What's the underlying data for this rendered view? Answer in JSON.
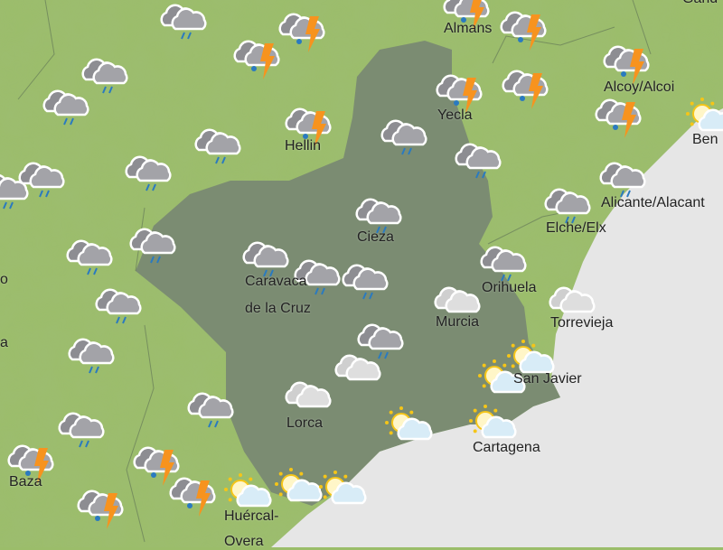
{
  "map": {
    "colors": {
      "land": "#9bbd6a",
      "region": "#7b8c72",
      "sea": "#e6e6e6",
      "sun": "#f5c518",
      "bolt": "#f7931e",
      "rain": "#2a7ac0"
    },
    "places": [
      "Gand",
      "Almans",
      "Yecla",
      "Alcoy/Alcoi",
      "Ben",
      "Hellin",
      "Alicante/Alacant",
      "Elche/Elx",
      "Cieza",
      "Caravaca",
      "de la Cruz",
      "Orihuela",
      "Murcia",
      "Torrevieja",
      "San Javier",
      "Lorca",
      "Cartagena",
      "Baza",
      "Huércal-",
      "Overa",
      "o",
      "a"
    ],
    "icons": [
      "rain",
      "rain",
      "rain",
      "rain",
      "rain",
      "rain",
      "rain",
      "rain",
      "rain",
      "rain",
      "rain",
      "rain",
      "rain",
      "rain",
      "rain",
      "rain",
      "rain",
      "rain",
      "rain",
      "rain",
      "rain",
      "rain",
      "rain",
      "storm",
      "storm",
      "storm",
      "storm",
      "storm",
      "storm",
      "storm",
      "storm",
      "storm",
      "storm",
      "storm",
      "storm",
      "storm",
      "cloud",
      "cloud",
      "cloud",
      "cloud",
      "sun-cloud",
      "sun-cloud",
      "sun-cloud",
      "sun-cloud",
      "sun-cloud",
      "sun-cloud",
      "sun-cloud",
      "sun-cloud"
    ]
  }
}
